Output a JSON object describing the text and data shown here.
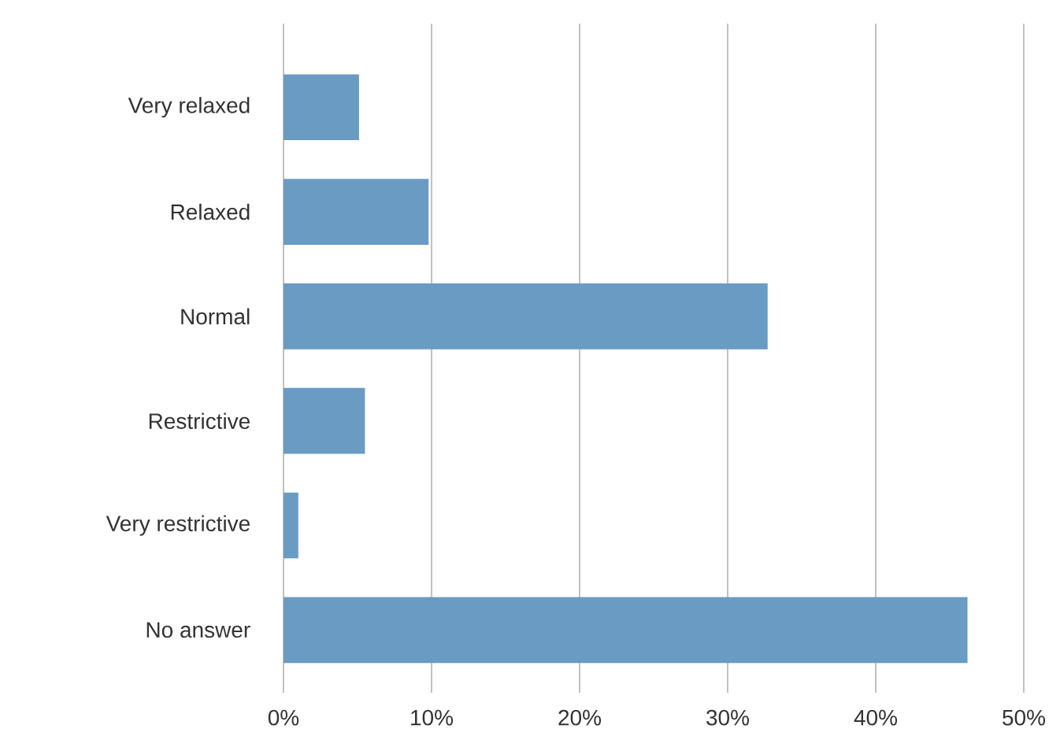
{
  "chart_data": {
    "type": "bar",
    "orientation": "horizontal",
    "categories": [
      "Very relaxed",
      "Relaxed",
      "Normal",
      "Restrictive",
      "Very restrictive",
      "No answer"
    ],
    "values": [
      5.1,
      9.8,
      32.7,
      5.5,
      1.0,
      46.2
    ],
    "color": "#6a9bc3",
    "xlim": [
      0,
      50
    ],
    "xticks": [
      {
        "value": 0,
        "label": "0%"
      },
      {
        "value": 10,
        "label": "10%"
      },
      {
        "value": 20,
        "label": "20%"
      },
      {
        "value": 30,
        "label": "30%"
      },
      {
        "value": 40,
        "label": "40%"
      },
      {
        "value": 50,
        "label": "50%"
      }
    ],
    "grid": "x"
  }
}
